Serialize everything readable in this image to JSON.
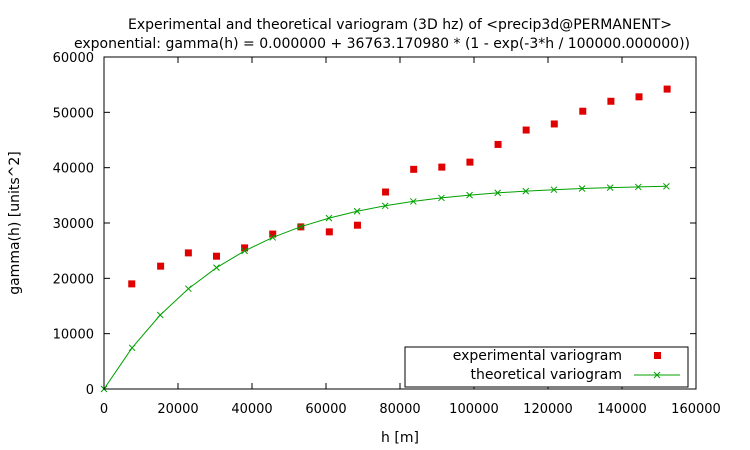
{
  "chart_data": {
    "type": "scatter",
    "title": "Experimental and theoretical variogram (3D hz) of <precip3d@PERMANENT>",
    "subtitle": "exponential: gamma(h) = 0.000000 + 36763.170980 * (1 - exp(-3*h / 100000.000000))",
    "xlabel": "h [m]",
    "ylabel": "gamma(h) [units^2]",
    "xlim": [
      0,
      160000
    ],
    "ylim": [
      0,
      60000
    ],
    "xticks": [
      0,
      20000,
      40000,
      60000,
      80000,
      100000,
      120000,
      140000,
      160000
    ],
    "yticks": [
      0,
      10000,
      20000,
      30000,
      40000,
      50000,
      60000
    ],
    "grid": false,
    "legend_position": "bottom-right",
    "series": [
      {
        "name": "experimental variogram",
        "color": "#e00000",
        "marker": "square",
        "points": [
          [
            7500,
            19000
          ],
          [
            15300,
            22200
          ],
          [
            22800,
            24600
          ],
          [
            30400,
            24000
          ],
          [
            38000,
            25500
          ],
          [
            45600,
            28000
          ],
          [
            53200,
            29300
          ],
          [
            60900,
            28400
          ],
          [
            68500,
            29600
          ],
          [
            76100,
            35600
          ],
          [
            83700,
            39700
          ],
          [
            91300,
            40100
          ],
          [
            98900,
            41000
          ],
          [
            106500,
            44200
          ],
          [
            114100,
            46800
          ],
          [
            121700,
            47900
          ],
          [
            129400,
            50200
          ],
          [
            137000,
            52000
          ],
          [
            144600,
            52800
          ],
          [
            152200,
            54200
          ]
        ]
      },
      {
        "name": "theoretical variogram",
        "color": "#00a000",
        "marker": "cross",
        "line": true,
        "points": [
          [
            0,
            0
          ],
          [
            7600,
            7440
          ],
          [
            15200,
            13380
          ],
          [
            22800,
            18130
          ],
          [
            30400,
            21930
          ],
          [
            38000,
            24960
          ],
          [
            45600,
            27390
          ],
          [
            53200,
            29330
          ],
          [
            60800,
            30880
          ],
          [
            68400,
            32120
          ],
          [
            76000,
            33110
          ],
          [
            83600,
            33900
          ],
          [
            91200,
            34530
          ],
          [
            98800,
            35040
          ],
          [
            106400,
            35440
          ],
          [
            114000,
            35760
          ],
          [
            121600,
            36020
          ],
          [
            129200,
            36230
          ],
          [
            136800,
            36390
          ],
          [
            144400,
            36520
          ],
          [
            152000,
            36630
          ]
        ]
      }
    ]
  }
}
